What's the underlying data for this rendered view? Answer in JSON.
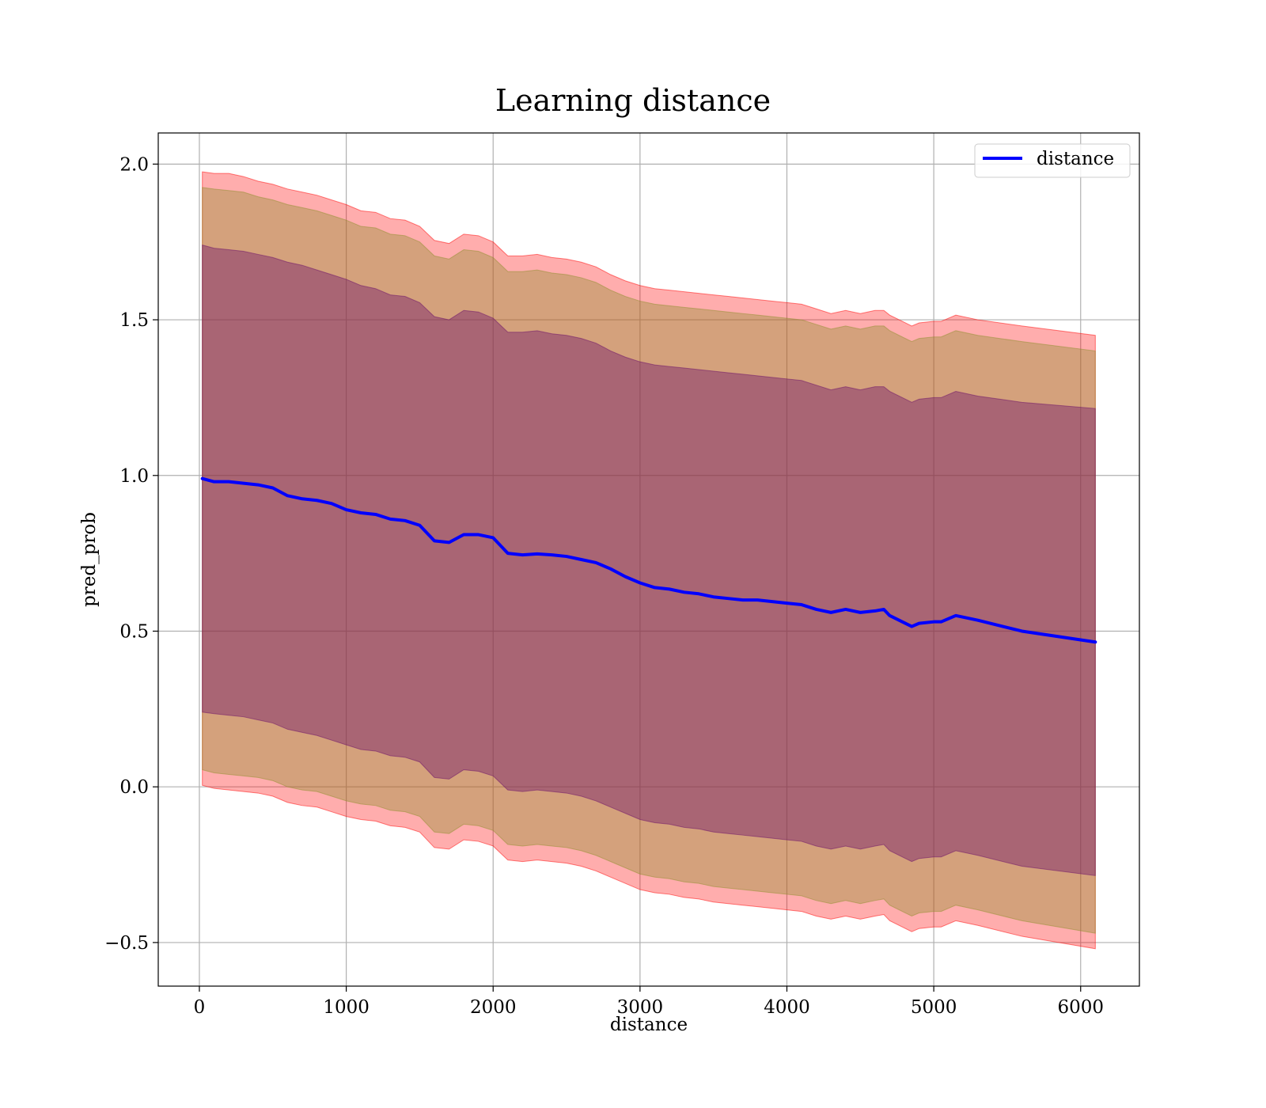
{
  "chart_data": {
    "type": "line",
    "title": "Learning distance",
    "xlabel": "distance",
    "ylabel": "pred_prob",
    "xlim": [
      -280,
      6400
    ],
    "ylim": [
      -0.64,
      2.1
    ],
    "xticks": [
      0,
      1000,
      2000,
      3000,
      4000,
      5000,
      6000
    ],
    "xtick_labels": [
      "0",
      "1000",
      "2000",
      "3000",
      "4000",
      "5000",
      "6000"
    ],
    "yticks": [
      -0.5,
      0.0,
      0.5,
      1.0,
      1.5,
      2.0
    ],
    "ytick_labels": [
      "−0.5",
      "0.0",
      "0.5",
      "1.0",
      "1.5",
      "2.0"
    ],
    "grid": true,
    "legend_position": "top-right",
    "x": [
      20,
      100,
      200,
      300,
      400,
      500,
      600,
      700,
      800,
      900,
      1000,
      1100,
      1200,
      1300,
      1400,
      1500,
      1600,
      1700,
      1800,
      1900,
      2000,
      2100,
      2200,
      2300,
      2400,
      2500,
      2600,
      2700,
      2800,
      2900,
      3000,
      3100,
      3200,
      3300,
      3400,
      3500,
      3600,
      3700,
      3800,
      3900,
      4000,
      4100,
      4200,
      4300,
      4400,
      4500,
      4600,
      4660,
      4700,
      4850,
      4900,
      5000,
      5050,
      5150,
      5300,
      5600,
      6100
    ],
    "series": [
      {
        "name": "distance",
        "color": "#0000ff",
        "values": [
          0.99,
          0.98,
          0.98,
          0.975,
          0.97,
          0.96,
          0.935,
          0.925,
          0.92,
          0.91,
          0.89,
          0.88,
          0.875,
          0.86,
          0.855,
          0.84,
          0.79,
          0.785,
          0.81,
          0.81,
          0.8,
          0.75,
          0.745,
          0.748,
          0.745,
          0.74,
          0.73,
          0.72,
          0.7,
          0.675,
          0.655,
          0.64,
          0.635,
          0.625,
          0.62,
          0.61,
          0.605,
          0.6,
          0.6,
          0.595,
          0.59,
          0.585,
          0.57,
          0.56,
          0.57,
          0.56,
          0.565,
          0.57,
          0.55,
          0.515,
          0.525,
          0.53,
          0.53,
          0.55,
          0.535,
          0.5,
          0.465
        ]
      }
    ],
    "bands": [
      {
        "color": "#ff0000",
        "opacity": 0.32,
        "upper": [
          1.975,
          1.97,
          1.97,
          1.96,
          1.945,
          1.935,
          1.92,
          1.91,
          1.9,
          1.885,
          1.87,
          1.85,
          1.845,
          1.825,
          1.82,
          1.8,
          1.755,
          1.745,
          1.775,
          1.77,
          1.75,
          1.705,
          1.705,
          1.71,
          1.7,
          1.695,
          1.685,
          1.67,
          1.645,
          1.625,
          1.61,
          1.6,
          1.595,
          1.59,
          1.585,
          1.58,
          1.575,
          1.57,
          1.565,
          1.56,
          1.555,
          1.55,
          1.535,
          1.52,
          1.53,
          1.52,
          1.53,
          1.53,
          1.515,
          1.48,
          1.49,
          1.495,
          1.495,
          1.515,
          1.5,
          1.48,
          1.45
        ],
        "lower": [
          0.005,
          -0.005,
          -0.01,
          -0.015,
          -0.02,
          -0.03,
          -0.05,
          -0.06,
          -0.065,
          -0.08,
          -0.095,
          -0.105,
          -0.11,
          -0.125,
          -0.13,
          -0.145,
          -0.195,
          -0.2,
          -0.17,
          -0.175,
          -0.19,
          -0.235,
          -0.24,
          -0.235,
          -0.24,
          -0.245,
          -0.255,
          -0.27,
          -0.29,
          -0.31,
          -0.33,
          -0.34,
          -0.345,
          -0.355,
          -0.36,
          -0.37,
          -0.375,
          -0.38,
          -0.385,
          -0.39,
          -0.395,
          -0.4,
          -0.415,
          -0.425,
          -0.415,
          -0.425,
          -0.415,
          -0.41,
          -0.43,
          -0.465,
          -0.455,
          -0.45,
          -0.45,
          -0.43,
          -0.445,
          -0.48,
          -0.52
        ]
      },
      {
        "color": "#8f8f2e",
        "opacity": 0.38,
        "upper": [
          1.925,
          1.92,
          1.915,
          1.91,
          1.895,
          1.885,
          1.87,
          1.86,
          1.85,
          1.835,
          1.82,
          1.8,
          1.795,
          1.775,
          1.77,
          1.75,
          1.705,
          1.695,
          1.725,
          1.72,
          1.7,
          1.655,
          1.655,
          1.66,
          1.65,
          1.645,
          1.635,
          1.62,
          1.595,
          1.575,
          1.56,
          1.55,
          1.545,
          1.54,
          1.535,
          1.53,
          1.525,
          1.52,
          1.515,
          1.51,
          1.505,
          1.5,
          1.485,
          1.47,
          1.48,
          1.47,
          1.48,
          1.48,
          1.465,
          1.43,
          1.44,
          1.445,
          1.445,
          1.465,
          1.45,
          1.43,
          1.4
        ],
        "lower": [
          0.055,
          0.045,
          0.04,
          0.035,
          0.03,
          0.02,
          0.0,
          -0.01,
          -0.015,
          -0.03,
          -0.045,
          -0.055,
          -0.06,
          -0.075,
          -0.08,
          -0.095,
          -0.145,
          -0.15,
          -0.12,
          -0.125,
          -0.14,
          -0.185,
          -0.19,
          -0.185,
          -0.19,
          -0.195,
          -0.205,
          -0.22,
          -0.24,
          -0.26,
          -0.28,
          -0.29,
          -0.295,
          -0.305,
          -0.31,
          -0.32,
          -0.325,
          -0.33,
          -0.335,
          -0.34,
          -0.345,
          -0.35,
          -0.365,
          -0.375,
          -0.365,
          -0.375,
          -0.365,
          -0.36,
          -0.38,
          -0.415,
          -0.405,
          -0.4,
          -0.4,
          -0.38,
          -0.395,
          -0.43,
          -0.47
        ]
      },
      {
        "color": "#6a0d6a",
        "opacity": 0.4,
        "upper": [
          1.74,
          1.73,
          1.725,
          1.72,
          1.71,
          1.7,
          1.685,
          1.675,
          1.66,
          1.645,
          1.63,
          1.61,
          1.6,
          1.58,
          1.575,
          1.555,
          1.51,
          1.5,
          1.53,
          1.525,
          1.505,
          1.46,
          1.46,
          1.465,
          1.455,
          1.45,
          1.44,
          1.425,
          1.4,
          1.38,
          1.365,
          1.355,
          1.35,
          1.345,
          1.34,
          1.335,
          1.33,
          1.325,
          1.32,
          1.315,
          1.31,
          1.305,
          1.29,
          1.275,
          1.285,
          1.275,
          1.285,
          1.285,
          1.27,
          1.235,
          1.245,
          1.25,
          1.25,
          1.27,
          1.255,
          1.235,
          1.215
        ],
        "lower": [
          0.24,
          0.235,
          0.23,
          0.225,
          0.215,
          0.205,
          0.185,
          0.175,
          0.165,
          0.15,
          0.135,
          0.12,
          0.115,
          0.1,
          0.095,
          0.08,
          0.03,
          0.025,
          0.055,
          0.05,
          0.035,
          -0.01,
          -0.015,
          -0.01,
          -0.015,
          -0.02,
          -0.03,
          -0.045,
          -0.065,
          -0.085,
          -0.105,
          -0.115,
          -0.12,
          -0.13,
          -0.135,
          -0.145,
          -0.15,
          -0.155,
          -0.16,
          -0.165,
          -0.17,
          -0.175,
          -0.19,
          -0.2,
          -0.19,
          -0.2,
          -0.19,
          -0.185,
          -0.205,
          -0.24,
          -0.23,
          -0.225,
          -0.225,
          -0.205,
          -0.22,
          -0.255,
          -0.285
        ]
      }
    ]
  }
}
